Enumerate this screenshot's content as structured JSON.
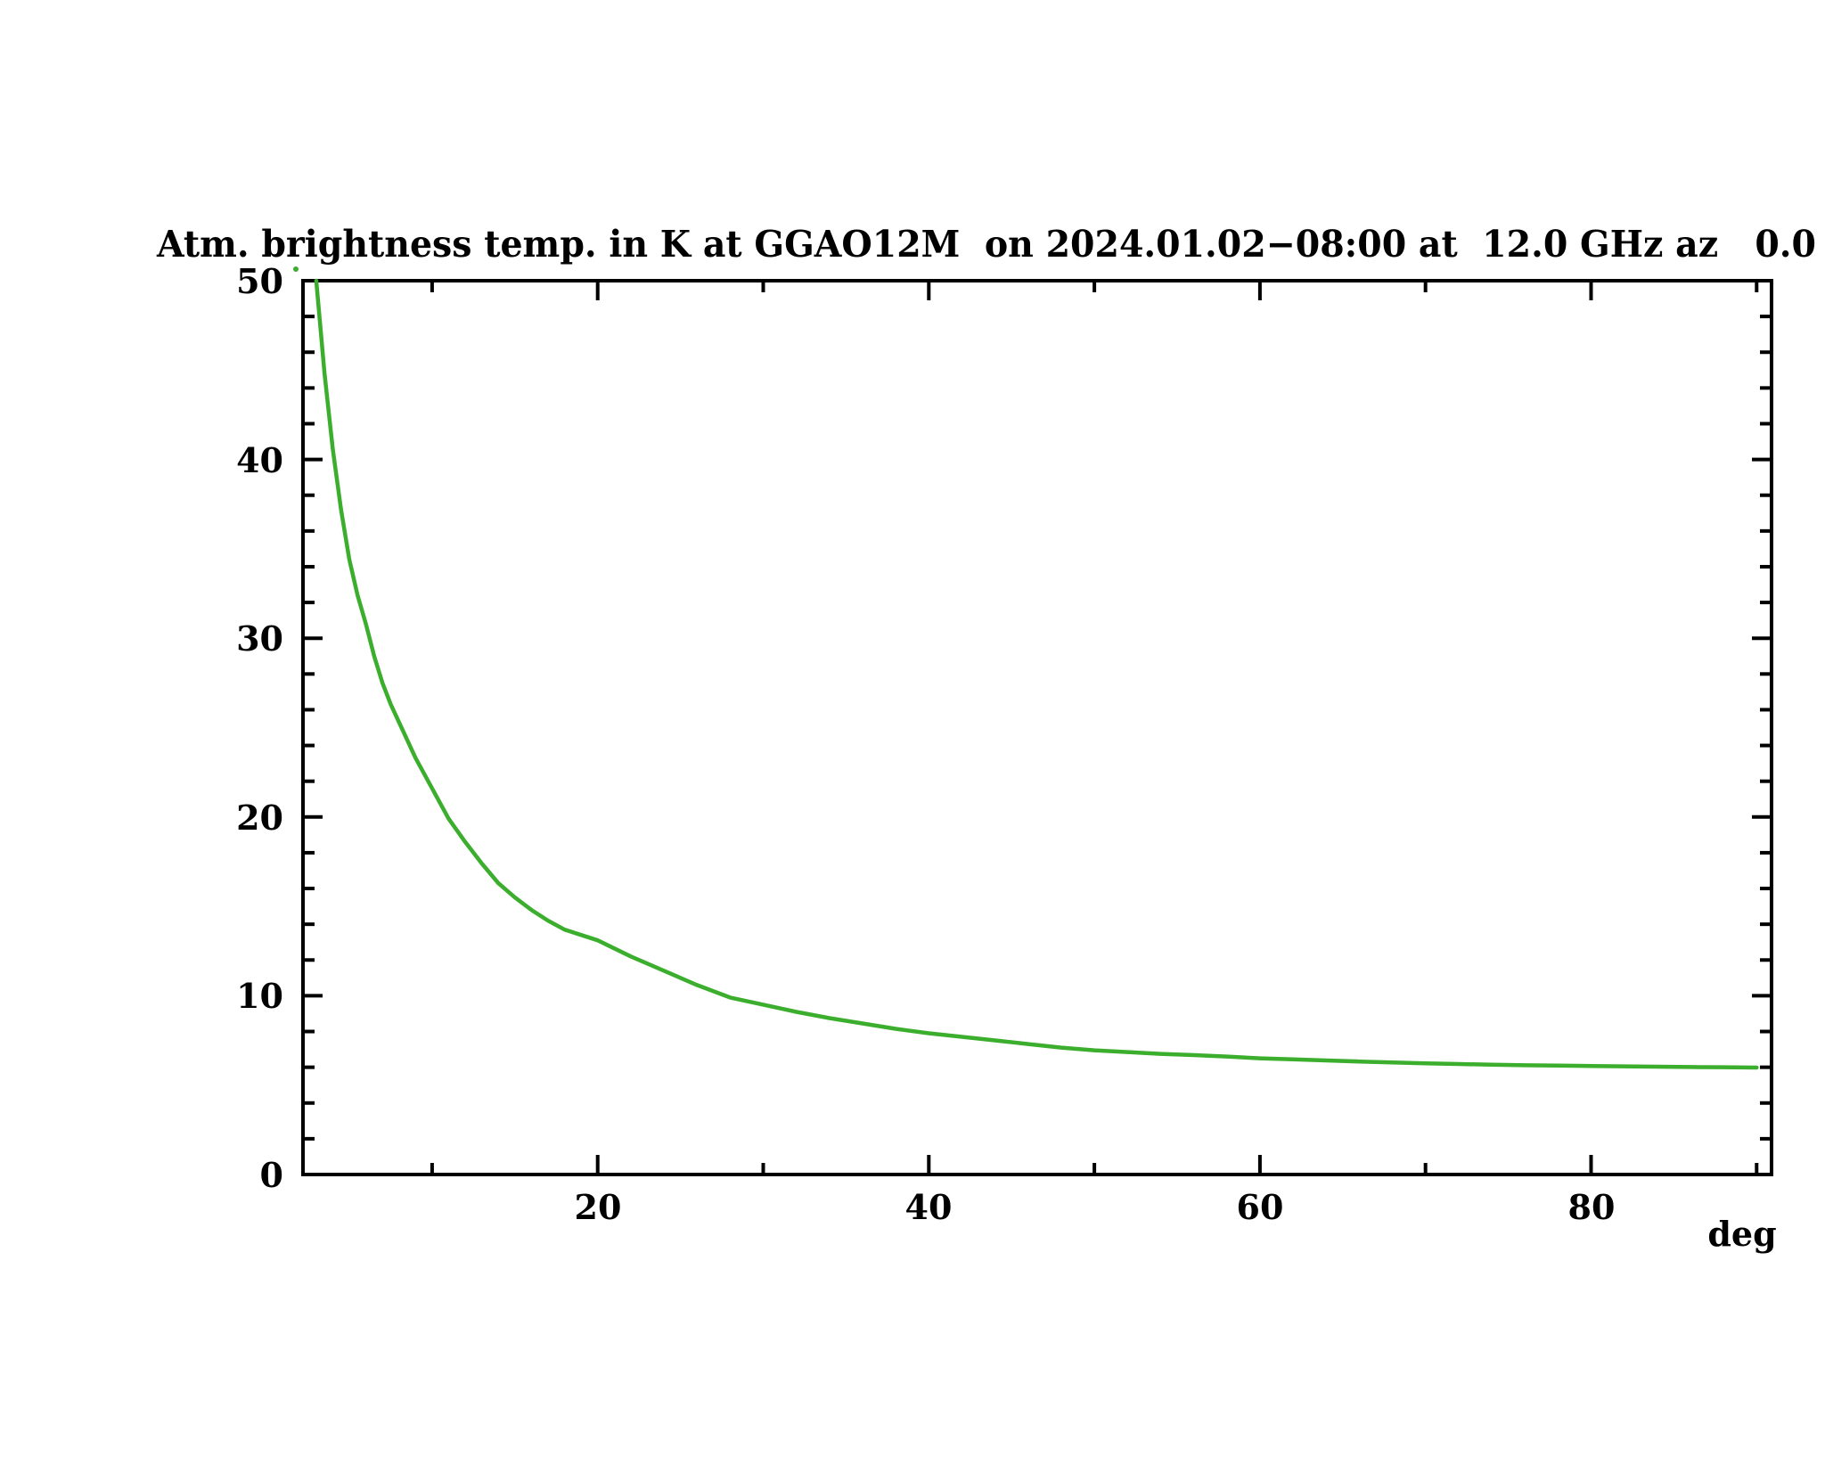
{
  "title": "Atm. brightness temp. in K at GGAO12M  on 2024.01.02−08:00 at  12.0 GHz az   0.0",
  "x_axis": {
    "tick_labels": [
      "20",
      "40",
      "60",
      "80"
    ],
    "unit_label": "deg"
  },
  "y_axis": {
    "tick_labels": [
      "0",
      "10",
      "20",
      "30",
      "40",
      "50"
    ]
  },
  "chart_data": {
    "type": "line",
    "title": "Atm. brightness temp. in K at GGAO12M  on 2024.01.02−08:00 at  12.0 GHz az   0.0",
    "xlabel": "deg",
    "ylabel": "",
    "xlim": [
      2.2,
      90.9
    ],
    "ylim": [
      0,
      50
    ],
    "grid": false,
    "legend": "none",
    "frame": "box",
    "x_major_ticks": [
      20,
      40,
      60,
      80
    ],
    "x_minor_ticks": [
      10,
      30,
      50,
      70,
      90
    ],
    "y_major_ticks": [
      0,
      10,
      20,
      30,
      40,
      50
    ],
    "y_minor_ticks": [
      2,
      4,
      6,
      8,
      12,
      14,
      16,
      18,
      22,
      24,
      26,
      28,
      32,
      34,
      36,
      38,
      42,
      44,
      46,
      48
    ],
    "line_color": "#3cae2d",
    "axis_color": "#000000",
    "series": [
      {
        "name": "atm_brightness_temp_K",
        "x": [
          3,
          3.5,
          4,
          4.5,
          5,
          5.5,
          6,
          6.5,
          7,
          7.5,
          8,
          9,
          10,
          11,
          12,
          13,
          14,
          15,
          16,
          17,
          18,
          19,
          20,
          22,
          24,
          26,
          28,
          30,
          32,
          34,
          36,
          38,
          40,
          42,
          44,
          46,
          48,
          50,
          52,
          54,
          56,
          58,
          60,
          62,
          64,
          66,
          68,
          70,
          72,
          74,
          76,
          78,
          80,
          82,
          84,
          86,
          88,
          90
        ],
        "y": [
          50.0,
          44.8,
          40.6,
          37.2,
          34.4,
          32.4,
          30.8,
          29.0,
          27.5,
          26.3,
          25.3,
          23.3,
          21.6,
          19.9,
          18.6,
          17.4,
          16.3,
          15.5,
          14.8,
          14.2,
          13.7,
          13.4,
          13.1,
          12.2,
          11.4,
          10.6,
          9.9,
          9.5,
          9.1,
          8.75,
          8.45,
          8.15,
          7.9,
          7.7,
          7.5,
          7.3,
          7.1,
          6.95,
          6.85,
          6.75,
          6.68,
          6.6,
          6.5,
          6.44,
          6.38,
          6.32,
          6.27,
          6.22,
          6.18,
          6.14,
          6.11,
          6.09,
          6.07,
          6.05,
          6.03,
          6.01,
          6.0,
          5.98
        ]
      }
    ]
  }
}
